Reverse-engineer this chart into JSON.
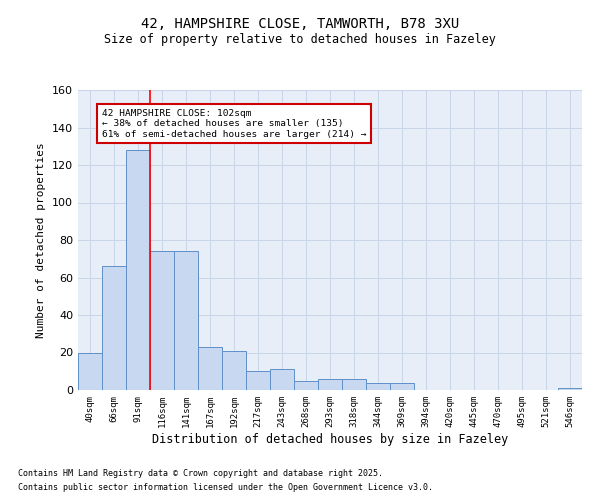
{
  "title1": "42, HAMPSHIRE CLOSE, TAMWORTH, B78 3XU",
  "title2": "Size of property relative to detached houses in Fazeley",
  "xlabel": "Distribution of detached houses by size in Fazeley",
  "ylabel": "Number of detached properties",
  "categories": [
    "40sqm",
    "66sqm",
    "91sqm",
    "116sqm",
    "141sqm",
    "167sqm",
    "192sqm",
    "217sqm",
    "243sqm",
    "268sqm",
    "293sqm",
    "318sqm",
    "344sqm",
    "369sqm",
    "394sqm",
    "420sqm",
    "445sqm",
    "470sqm",
    "495sqm",
    "521sqm",
    "546sqm"
  ],
  "values": [
    20,
    66,
    128,
    74,
    74,
    23,
    21,
    10,
    11,
    5,
    6,
    6,
    4,
    4,
    0,
    0,
    0,
    0,
    0,
    0,
    1
  ],
  "bar_color": "#c8d8f0",
  "bar_edge_color": "#6090c8",
  "red_line_x": 2.5,
  "annotation_text": "42 HAMPSHIRE CLOSE: 102sqm\n← 38% of detached houses are smaller (135)\n61% of semi-detached houses are larger (214) →",
  "annotation_box_color": "#ffffff",
  "annotation_box_edge": "#cc0000",
  "ylim": [
    0,
    160
  ],
  "yticks": [
    0,
    20,
    40,
    60,
    80,
    100,
    120,
    140,
    160
  ],
  "grid_color": "#c8d4e8",
  "background_color": "#e8eef8",
  "footer1": "Contains HM Land Registry data © Crown copyright and database right 2025.",
  "footer2": "Contains public sector information licensed under the Open Government Licence v3.0."
}
